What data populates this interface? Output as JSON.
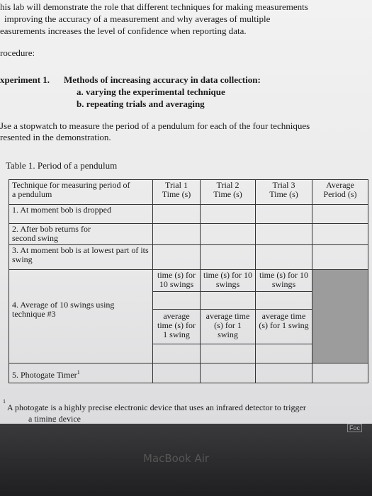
{
  "intro": [
    "his lab will demonstrate the role that different techniques for making measurements",
    "improving the accuracy of a measurement and why averages of multiple",
    "easurements increases the level of confidence when reporting data."
  ],
  "procedure": "rocedure:",
  "experiment": {
    "label": "xperiment 1.",
    "title": "Methods of increasing accuracy in data collection:",
    "items": [
      "a. varying the experimental technique",
      "b. repeating trials and averaging"
    ]
  },
  "instructions": [
    "Jse a stopwatch to measure the period of a pendulum for each of the four techniques",
    "resented in the demonstration."
  ],
  "table": {
    "caption": "Table 1. Period of a pendulum",
    "header": [
      "Technique for measuring period of a pendulum",
      "Trial 1 Time (s)",
      "Trial 2 Time (s)",
      "Trial 3 Time (s)",
      "Average Period (s)"
    ],
    "rows": [
      "1. At moment bob is dropped",
      "2. After bob returns for second swing",
      "3. At moment bob is at lowest part of its swing",
      "4. Average of 10 swings using technique #3",
      "5. Photogate Timer"
    ],
    "superscript": "1",
    "swings": [
      "time (s) for 10 swings",
      "time (s) for 10 swings",
      "time (s) for 10 swings"
    ],
    "averages": [
      "average time (s) for 1 swing",
      "average time (s) for 1 swing",
      "average time (s) for 1 swing"
    ]
  },
  "footnote": {
    "marker": "1",
    "lines": [
      "A photogate is a highly precise electronic device that uses an infrared detector to trigger",
      "a timing device"
    ]
  },
  "screen": {
    "button": "Foc",
    "brand": "MacBook Air"
  }
}
